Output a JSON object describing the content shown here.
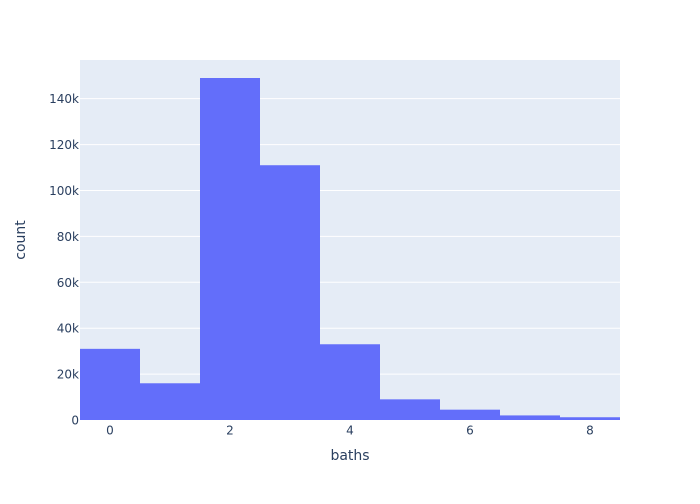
{
  "chart_data": {
    "type": "bar",
    "title": "",
    "xlabel": "baths",
    "ylabel": "count",
    "xlim": [
      -0.5,
      8.5
    ],
    "ylim": [
      0,
      156842
    ],
    "grid": true,
    "bins": [
      {
        "start": -0.5,
        "end": 0.5,
        "count": 31000
      },
      {
        "start": 0.5,
        "end": 1.5,
        "count": 16000
      },
      {
        "start": 1.5,
        "end": 2.5,
        "count": 149000
      },
      {
        "start": 2.5,
        "end": 3.5,
        "count": 111000
      },
      {
        "start": 3.5,
        "end": 4.5,
        "count": 33000
      },
      {
        "start": 4.5,
        "end": 5.5,
        "count": 9000
      },
      {
        "start": 5.5,
        "end": 6.5,
        "count": 4500
      },
      {
        "start": 6.5,
        "end": 7.5,
        "count": 2000
      },
      {
        "start": 7.5,
        "end": 8.5,
        "count": 1200
      }
    ],
    "x_ticks": [
      {
        "value": 0,
        "label": "0"
      },
      {
        "value": 2,
        "label": "2"
      },
      {
        "value": 4,
        "label": "4"
      },
      {
        "value": 6,
        "label": "6"
      },
      {
        "value": 8,
        "label": "8"
      }
    ],
    "y_ticks": [
      {
        "value": 0,
        "label": "0"
      },
      {
        "value": 20000,
        "label": "20k"
      },
      {
        "value": 40000,
        "label": "40k"
      },
      {
        "value": 60000,
        "label": "60k"
      },
      {
        "value": 80000,
        "label": "80k"
      },
      {
        "value": 100000,
        "label": "100k"
      },
      {
        "value": 120000,
        "label": "120k"
      },
      {
        "value": 140000,
        "label": "140k"
      }
    ],
    "colors": {
      "bar": "#636efa",
      "plot_bg": "#e5ecf6",
      "grid": "#ffffff",
      "text": "#2a3f5f"
    }
  }
}
